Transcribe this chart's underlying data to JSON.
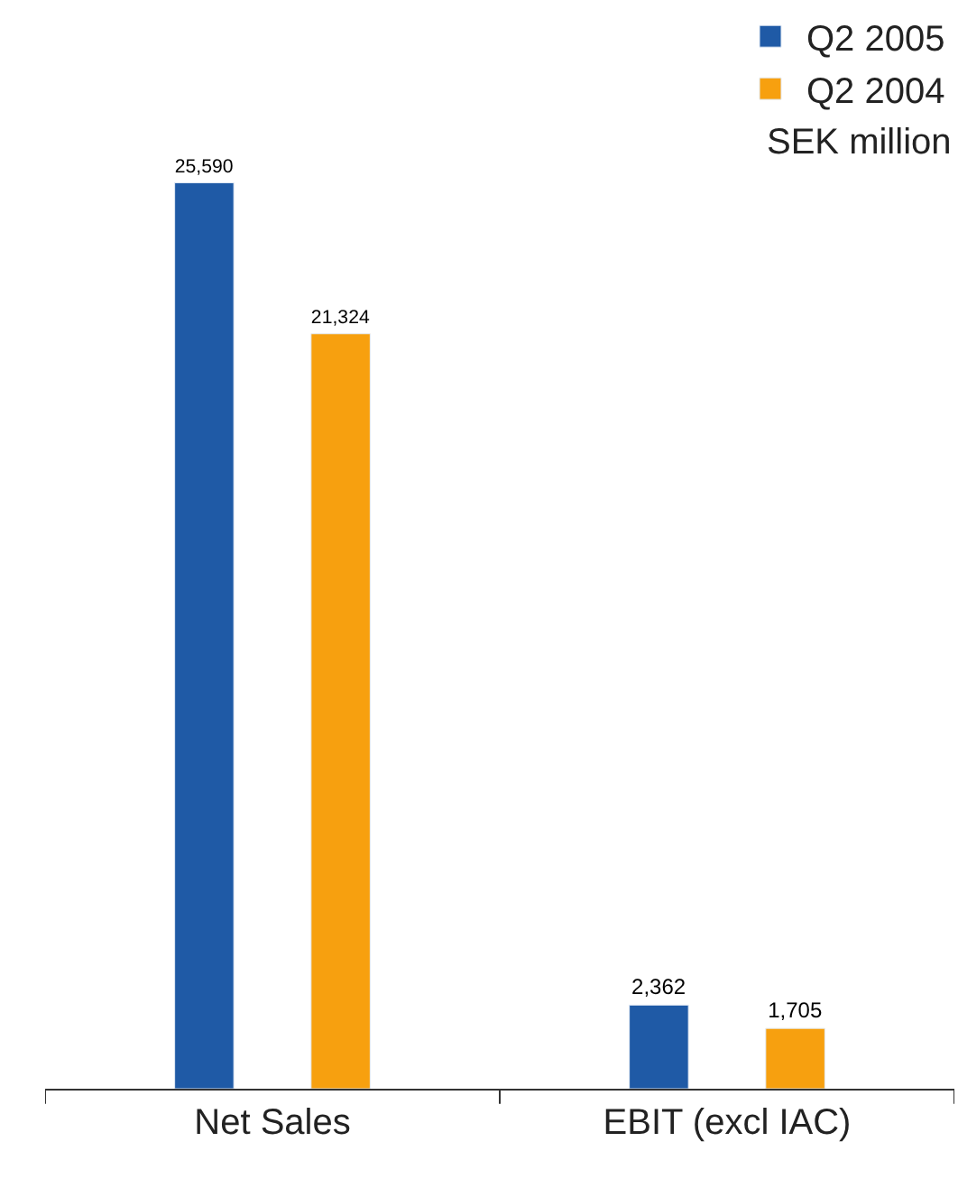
{
  "chart_data": {
    "type": "bar",
    "categories": [
      "Net Sales",
      "EBIT (excl IAC)"
    ],
    "series": [
      {
        "name": "Q2 2005",
        "color": "#1f5aa6",
        "values": [
          25590,
          2362
        ],
        "value_labels": [
          "25,590",
          "2,362"
        ]
      },
      {
        "name": "Q2 2004",
        "color": "#f7a00f",
        "values": [
          21324,
          1705
        ],
        "value_labels": [
          "21,324",
          "1,705"
        ]
      }
    ],
    "annotations": [
      "SEK million"
    ],
    "legend": "top right"
  }
}
